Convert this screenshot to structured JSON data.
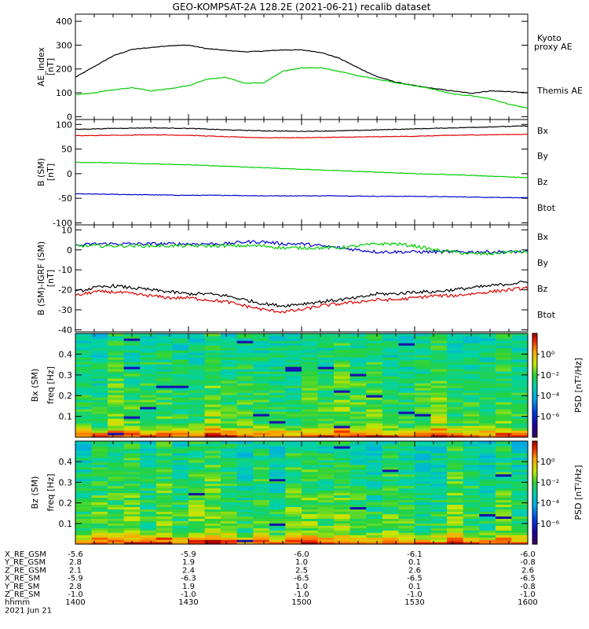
{
  "title": "GEO-KOMPSAT-2A 128.2E (2021-06-21) recalib dataset",
  "chart_data": [
    {
      "type": "line",
      "id": "ae",
      "ylabel": "AE_index",
      "yunit": "[nT]",
      "ylim": [
        0,
        400
      ],
      "yticks": [
        0,
        100,
        200,
        300,
        400
      ],
      "x": [
        1400,
        1405,
        1410,
        1415,
        1420,
        1425,
        1430,
        1435,
        1440,
        1445,
        1450,
        1455,
        1500,
        1505,
        1510,
        1515,
        1520,
        1525,
        1530,
        1535,
        1540,
        1545,
        1550,
        1555,
        1600
      ],
      "series": [
        {
          "name": "Themis AE",
          "color": "#000000",
          "values": [
            165,
            210,
            255,
            282,
            290,
            298,
            300,
            285,
            278,
            272,
            275,
            280,
            280,
            270,
            245,
            205,
            168,
            145,
            130,
            118,
            108,
            98,
            108,
            105,
            100
          ]
        },
        {
          "name": "Kyoto proxy AE",
          "color": "#00cc00",
          "values": [
            92,
            100,
            112,
            122,
            108,
            118,
            130,
            158,
            165,
            140,
            142,
            190,
            205,
            205,
            190,
            172,
            158,
            142,
            130,
            115,
            95,
            88,
            75,
            52,
            35
          ]
        }
      ]
    },
    {
      "type": "line",
      "id": "b",
      "ylabel": "B (SM)",
      "yunit": "[nT]",
      "ylim": [
        -100,
        100
      ],
      "yticks": [
        -100,
        -50,
        0,
        50,
        100
      ],
      "x": [
        1400,
        1410,
        1420,
        1430,
        1440,
        1450,
        1500,
        1510,
        1520,
        1530,
        1540,
        1550,
        1600
      ],
      "legend": [
        "Bx",
        "By",
        "Bz",
        "Btot"
      ],
      "legend_colors": [
        "#0000cc",
        "#00cc00",
        "#dd0000",
        "#000000"
      ],
      "series": [
        {
          "name": "Bx",
          "color": "#0000cc",
          "values": [
            -41,
            -42,
            -43,
            -44,
            -44,
            -45,
            -45,
            -45,
            -46,
            -46,
            -47,
            -48,
            -49
          ]
        },
        {
          "name": "By",
          "color": "#00cc00",
          "values": [
            23,
            22,
            20,
            18,
            15,
            12,
            9,
            6,
            3,
            0,
            -2,
            -5,
            -8
          ]
        },
        {
          "name": "Bz",
          "color": "#dd0000",
          "values": [
            77,
            78,
            79,
            78,
            75,
            73,
            73,
            74,
            75,
            76,
            78,
            79,
            80
          ]
        },
        {
          "name": "Btot",
          "color": "#000000",
          "values": [
            90,
            92,
            93,
            92,
            89,
            87,
            86,
            87,
            89,
            91,
            93,
            95,
            97
          ]
        }
      ]
    },
    {
      "type": "line",
      "id": "bigrf",
      "ylabel": "B (SM)-IGRF (SM)",
      "yunit": "[nT]",
      "ylim": [
        -40,
        10
      ],
      "yticks": [
        -40,
        -30,
        -20,
        -10,
        0,
        10
      ],
      "x": [
        1400,
        1405,
        1410,
        1415,
        1420,
        1425,
        1430,
        1435,
        1440,
        1445,
        1450,
        1455,
        1500,
        1505,
        1510,
        1515,
        1520,
        1525,
        1530,
        1535,
        1540,
        1545,
        1550,
        1555,
        1600
      ],
      "legend": [
        "Bx",
        "By",
        "Bz",
        "Btot"
      ],
      "legend_colors": [
        "#0000cc",
        "#00cc00",
        "#dd0000",
        "#000000"
      ],
      "series": [
        {
          "name": "Bx",
          "color": "#0000cc",
          "values": [
            2,
            3,
            3,
            3,
            3,
            3,
            3,
            3,
            3,
            4,
            4,
            3,
            3,
            2,
            1,
            0,
            -1,
            -1,
            -1,
            -1,
            -1,
            -1,
            -1,
            -1,
            -1
          ]
        },
        {
          "name": "By",
          "color": "#00cc00",
          "values": [
            2,
            2,
            2,
            2,
            2,
            2,
            2,
            2,
            2,
            2,
            2,
            1,
            1,
            1,
            1,
            2,
            3,
            3,
            2,
            0,
            -1,
            -2,
            -2,
            -1,
            -1
          ]
        },
        {
          "name": "Bz",
          "color": "#dd0000",
          "values": [
            -23,
            -21,
            -21,
            -22,
            -23,
            -24,
            -24,
            -25,
            -26,
            -28,
            -30,
            -31,
            -30,
            -28,
            -27,
            -26,
            -25,
            -25,
            -24,
            -23,
            -23,
            -22,
            -21,
            -20,
            -19
          ]
        },
        {
          "name": "Btot",
          "color": "#000000",
          "values": [
            -21,
            -19,
            -18,
            -19,
            -20,
            -21,
            -22,
            -22,
            -23,
            -25,
            -27,
            -28,
            -27,
            -26,
            -25,
            -24,
            -22,
            -22,
            -21,
            -21,
            -20,
            -19,
            -18,
            -17,
            -16
          ]
        }
      ]
    },
    {
      "type": "heatmap",
      "id": "bxspec",
      "ylabel": "Bx (SM)",
      "yunit": "freq [Hz]",
      "ylim": [
        0,
        0.5
      ],
      "yticks": [
        0.1,
        0.2,
        0.3,
        0.4
      ],
      "colorbar_label": "PSD [nT²/Hz]",
      "colorbar_ticks": [
        "10⁰",
        "10⁻²",
        "10⁻⁴",
        "10⁻⁶"
      ],
      "colorbar_exponents": [
        0,
        -2,
        -4,
        -6
      ]
    },
    {
      "type": "heatmap",
      "id": "bzspec",
      "ylabel": "Bz (SM)",
      "yunit": "freq [Hz]",
      "ylim": [
        0,
        0.5
      ],
      "yticks": [
        0.1,
        0.2,
        0.3,
        0.4
      ],
      "colorbar_label": "PSD [nT²/Hz]",
      "colorbar_ticks": [
        "10⁰",
        "10⁻²",
        "10⁻⁴",
        "10⁻⁶"
      ],
      "colorbar_exponents": [
        0,
        -2,
        -4,
        -6
      ]
    }
  ],
  "ephemeris": {
    "labels": [
      "X_RE_GSM",
      "Y_RE_GSM",
      "Z_RE_GSM",
      "X_RE_SM",
      "Y_RE_SM",
      "Z_RE_SM",
      "hhmm"
    ],
    "date": "2021 Jun 21",
    "columns": [
      [
        "-5.6",
        "2.8",
        "2.1",
        "-5.9",
        "2.8",
        "-1.0",
        "1400"
      ],
      [
        "-5.9",
        "1.9",
        "2.4",
        "-6.3",
        "1.9",
        "-1.0",
        "1430"
      ],
      [
        "-6.0",
        "1.0",
        "2.5",
        "-6.5",
        "1.0",
        "-1.0",
        "1500"
      ],
      [
        "-6.1",
        "0.1",
        "2.6",
        "-6.5",
        "0.1",
        "-1.0",
        "1530"
      ],
      [
        "-6.0",
        "-0.8",
        "2.6",
        "-6.5",
        "-0.8",
        "-1.0",
        "1600"
      ]
    ]
  }
}
